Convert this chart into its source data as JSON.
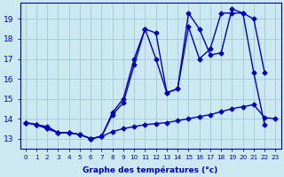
{
  "xlabel": "Graphe des températures (°c)",
  "background_color": "#cce8f0",
  "grid_color": "#a0c8d8",
  "line_color": "#0000bb",
  "ylim": [
    12.5,
    19.8
  ],
  "xlim": [
    -0.5,
    23.5
  ],
  "yticks": [
    13,
    14,
    15,
    16,
    17,
    18,
    19
  ],
  "xticks": [
    0,
    1,
    2,
    3,
    4,
    5,
    6,
    7,
    8,
    9,
    10,
    11,
    12,
    13,
    14,
    15,
    16,
    17,
    18,
    19,
    20,
    21,
    22,
    23
  ],
  "series1_x": [
    0,
    1,
    2,
    3,
    4,
    5,
    6,
    7,
    8,
    9,
    10,
    11,
    12,
    13,
    14,
    15,
    16,
    17,
    18,
    19,
    20,
    21,
    22,
    23
  ],
  "series1_y": [
    13.8,
    13.7,
    13.6,
    13.3,
    13.3,
    13.2,
    13.0,
    13.1,
    13.35,
    13.5,
    13.6,
    13.7,
    13.75,
    13.8,
    13.9,
    14.0,
    14.1,
    14.2,
    14.35,
    14.5,
    14.6,
    14.7,
    14.05,
    14.0
  ],
  "series2_x": [
    0,
    1,
    2,
    3,
    4,
    5,
    6,
    7,
    8,
    9,
    10,
    11,
    12,
    13,
    14,
    15,
    16,
    17,
    18,
    19,
    20,
    21,
    22
  ],
  "series2_y": [
    13.8,
    13.7,
    13.5,
    13.3,
    13.3,
    13.2,
    13.0,
    13.1,
    14.2,
    14.8,
    16.7,
    18.5,
    18.3,
    15.3,
    15.5,
    19.3,
    18.5,
    17.2,
    17.3,
    19.5,
    19.3,
    19.0,
    16.3
  ],
  "series3_x": [
    0,
    1,
    2,
    3,
    4,
    5,
    6,
    7,
    8,
    9,
    10,
    11,
    12,
    13,
    14,
    15,
    16,
    17,
    18,
    19,
    20,
    21,
    22
  ],
  "series3_y": [
    13.8,
    13.7,
    13.5,
    13.3,
    13.3,
    13.2,
    13.0,
    13.1,
    14.3,
    15.0,
    17.0,
    18.5,
    17.0,
    15.3,
    15.5,
    18.6,
    17.0,
    17.5,
    19.3,
    19.3,
    19.3,
    16.3,
    13.7
  ],
  "marker_size": 2.5,
  "line_width": 1.0
}
